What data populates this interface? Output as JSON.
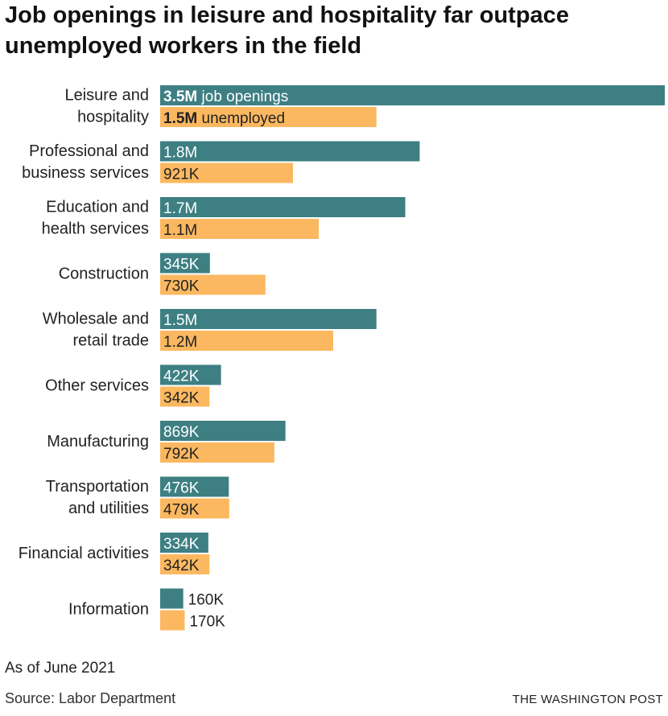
{
  "chart_data": {
    "type": "bar",
    "orientation": "horizontal",
    "title": "Job openings in leisure and hospitality far outpace unemployed workers in the field",
    "categories": [
      [
        "Leisure and",
        "hospitality"
      ],
      [
        "Professional and",
        "business services"
      ],
      [
        "Education and",
        "health services"
      ],
      [
        "Construction"
      ],
      [
        "Wholesale and",
        "retail trade"
      ],
      [
        "Other services"
      ],
      [
        "Manufacturing"
      ],
      [
        "Transportation",
        "and utilities"
      ],
      [
        "Financial activities"
      ],
      [
        "Information"
      ]
    ],
    "series": [
      {
        "name": "job openings",
        "color": "#3d7f83",
        "values": [
          3500000,
          1800000,
          1700000,
          345000,
          1500000,
          422000,
          869000,
          476000,
          334000,
          160000
        ],
        "labels": [
          "3.5M",
          "1.8M",
          "1.7M",
          "345K",
          "1.5M",
          "422K",
          "869K",
          "476K",
          "334K",
          "160K"
        ]
      },
      {
        "name": "unemployed",
        "color": "#fbb860",
        "values": [
          1500000,
          921000,
          1100000,
          730000,
          1200000,
          342000,
          792000,
          479000,
          342000,
          170000
        ],
        "labels": [
          "1.5M",
          "921K",
          "1.1M",
          "730K",
          "1.2M",
          "342K",
          "792K",
          "479K",
          "342K",
          "170K"
        ]
      }
    ],
    "xlim": [
      0,
      3500000
    ],
    "xlabel": "",
    "ylabel": ""
  },
  "footer": {
    "note": "As of June 2021",
    "source": "Source: Labor Department",
    "credit": "THE WASHINGTON POST"
  }
}
